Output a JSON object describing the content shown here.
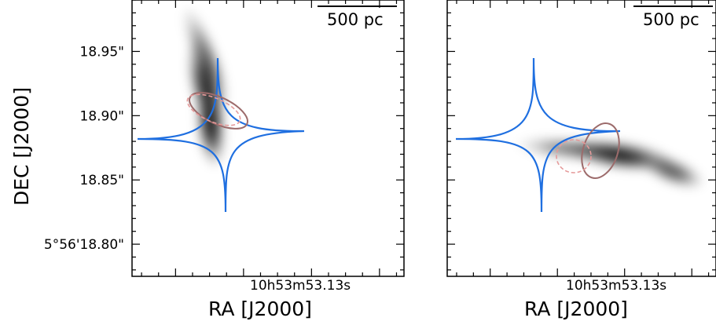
{
  "chart_data": [
    {
      "type": "scatter",
      "panel": "left",
      "xlabel": "RA [J2000]",
      "ylabel": "DEC [J2000]",
      "x_tick_label": "10h53m53.13s",
      "y_ticks": [
        {
          "value": 18.95,
          "label": "18.95\""
        },
        {
          "value": 18.9,
          "label": "18.90\""
        },
        {
          "value": 18.85,
          "label": "18.85\""
        },
        {
          "value": 18.8,
          "label": "5°56'18.80\""
        }
      ],
      "ylim": [
        18.775,
        18.99
      ],
      "scalebar_label": "500 pc",
      "colors": {
        "caustic": "#1f6fe0",
        "ellipse_solid": "#9c6b6b",
        "ellipse_dashed": "#e59a9a",
        "source": "#000000"
      }
    },
    {
      "type": "scatter",
      "panel": "right",
      "xlabel": "RA [J2000]",
      "ylabel": "",
      "x_tick_label": "10h53m53.13s",
      "y_ticks": [],
      "ylim": [
        18.775,
        18.99
      ],
      "scalebar_label": "500 pc",
      "colors": {
        "caustic": "#1f6fe0",
        "ellipse_solid": "#9c6b6b",
        "ellipse_dashed": "#e59a9a",
        "source": "#000000"
      }
    }
  ]
}
